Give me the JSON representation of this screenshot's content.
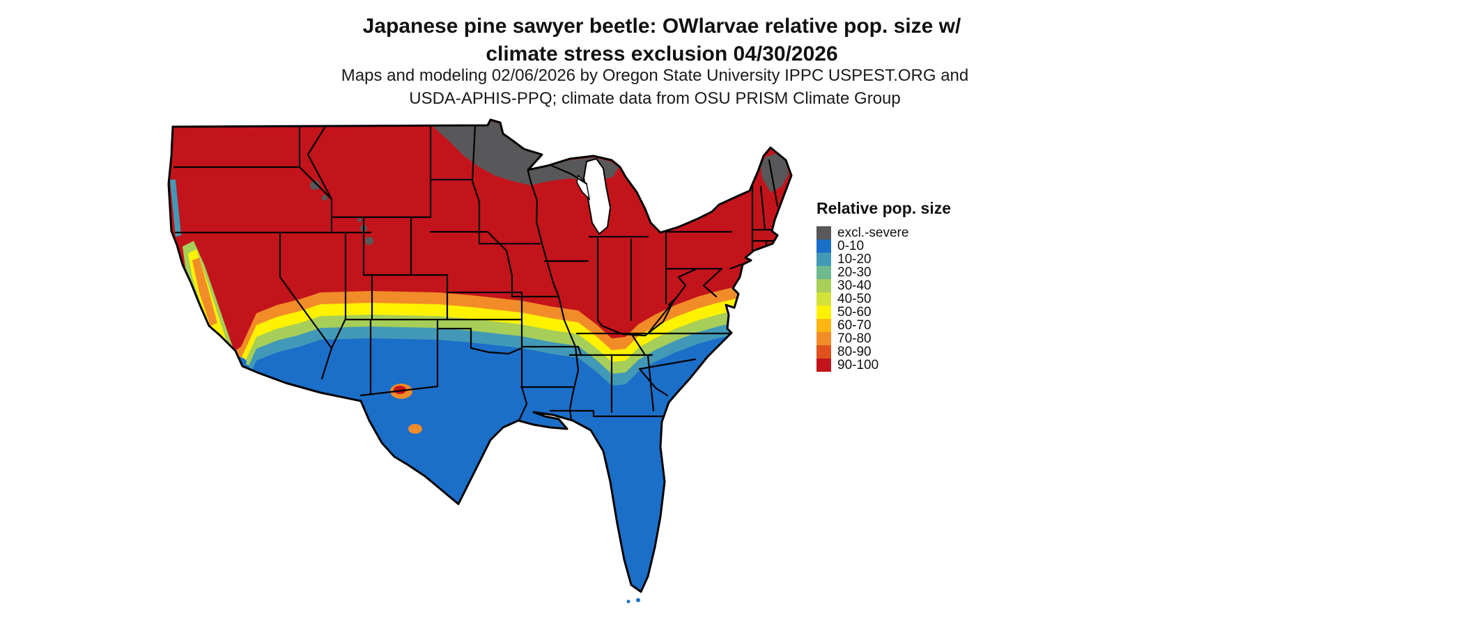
{
  "title": {
    "line1": "Japanese pine sawyer beetle: OWlarvae relative pop. size w/",
    "line2": "climate stress exclusion 04/30/2026"
  },
  "subtitle": {
    "line1": "Maps and modeling 02/06/2026 by Oregon State University IPPC USPEST.ORG and",
    "line2": "USDA-APHIS-PPQ; climate data from OSU PRISM Climate Group"
  },
  "legend": {
    "title": "Relative pop. size",
    "items": [
      {
        "label": "excl.-severe",
        "color": "#58585A"
      },
      {
        "label": "0-10",
        "color": "#1B6FC8"
      },
      {
        "label": "10-20",
        "color": "#4199B7"
      },
      {
        "label": "20-30",
        "color": "#6FB98F"
      },
      {
        "label": "30-40",
        "color": "#A6CE58"
      },
      {
        "label": "40-50",
        "color": "#D3E13B"
      },
      {
        "label": "50-60",
        "color": "#FFF200"
      },
      {
        "label": "60-70",
        "color": "#FFB612"
      },
      {
        "label": "70-80",
        "color": "#F28C28"
      },
      {
        "label": "80-90",
        "color": "#E0521D"
      },
      {
        "label": "90-100",
        "color": "#C3141B"
      }
    ]
  },
  "map": {
    "region": "Contiguous United States",
    "colors": {
      "base": "#C3141B",
      "excluded": "#58585A",
      "water": "#FFFFFF",
      "border": "#000000"
    }
  }
}
